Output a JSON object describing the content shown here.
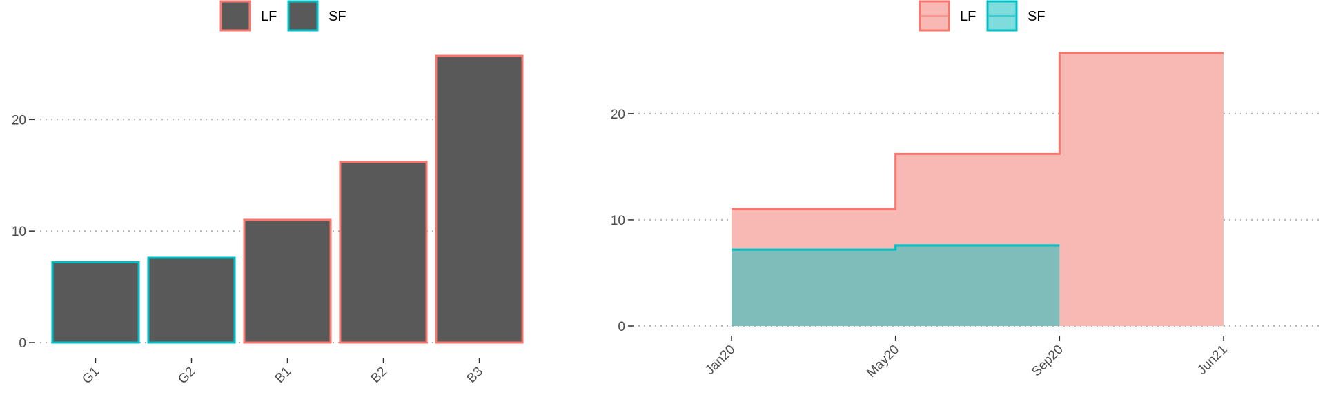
{
  "chart_data": [
    {
      "type": "bar",
      "categories": [
        "G1",
        "G2",
        "B1",
        "B2",
        "B3"
      ],
      "values": [
        7.2,
        7.6,
        11.0,
        16.2,
        25.7
      ],
      "groups": [
        "SF",
        "SF",
        "LF",
        "LF",
        "LF"
      ],
      "fill_color": "#595959",
      "ylim": [
        0,
        27
      ],
      "yticks": [
        0,
        10,
        20
      ],
      "grid": "horizontal dotted",
      "legend": {
        "placement": "top",
        "entries": [
          {
            "label": "LF",
            "color": "#F8766D"
          },
          {
            "label": "SF",
            "color": "#00BFC4"
          }
        ]
      }
    },
    {
      "type": "area",
      "step": true,
      "xticks": [
        "Jan20",
        "May20",
        "Sep20",
        "Jun21"
      ],
      "series": [
        {
          "name": "LF",
          "x": [
            "Jan20",
            "May20",
            "Sep20"
          ],
          "end": "Jun21",
          "values": [
            11.0,
            16.2,
            25.7
          ],
          "color": "#F8766D",
          "fill": "#F8B9B4"
        },
        {
          "name": "SF",
          "x": [
            "Jan20",
            "May20"
          ],
          "end": "Sep20",
          "values": [
            7.2,
            7.6
          ],
          "color": "#00BFC4",
          "fill": "#7FBDBB"
        }
      ],
      "ylim": [
        0,
        27
      ],
      "yticks": [
        0,
        10,
        20
      ],
      "grid": "horizontal dotted",
      "legend": {
        "placement": "top",
        "entries": [
          {
            "label": "LF",
            "color": "#F8766D",
            "fill": "#F8B9B4"
          },
          {
            "label": "SF",
            "color": "#00BFC4",
            "fill": "#7FDCDC"
          }
        ]
      }
    }
  ]
}
